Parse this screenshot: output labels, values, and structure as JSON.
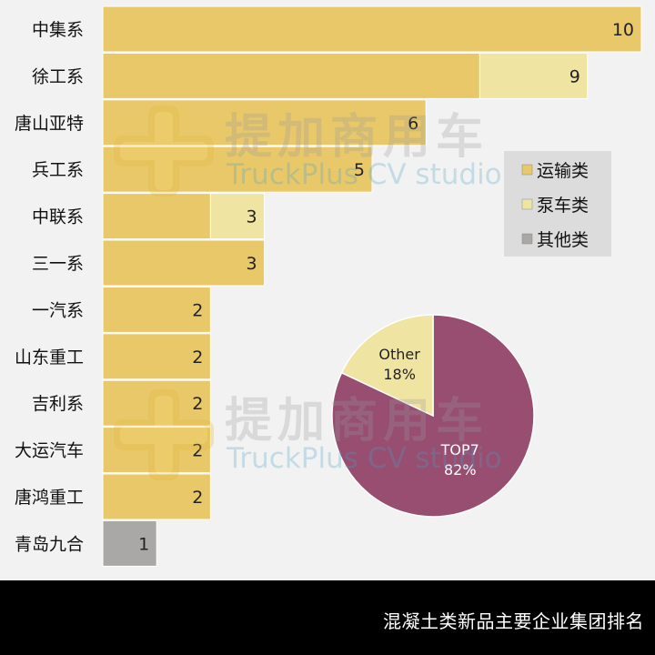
{
  "chart_data": [
    {
      "type": "bar",
      "orientation": "horizontal",
      "stacked": true,
      "categories": [
        "中集系",
        "徐工系",
        "唐山亚特",
        "兵工系",
        "中联系",
        "三一系",
        "一汽系",
        "山东重工",
        "吉利系",
        "大运汽车",
        "唐鸿重工",
        "青岛九合"
      ],
      "series": [
        {
          "name": "运输类",
          "values": [
            10,
            7,
            6,
            5,
            2,
            3,
            2,
            2,
            2,
            2,
            2,
            0
          ]
        },
        {
          "name": "泵车类",
          "values": [
            0,
            2,
            0,
            0,
            1,
            0,
            0,
            0,
            0,
            0,
            0,
            0
          ]
        },
        {
          "name": "其他类",
          "values": [
            0,
            0,
            0,
            0,
            0,
            0,
            0,
            0,
            0,
            0,
            0,
            1
          ]
        }
      ],
      "totals": [
        10,
        9,
        6,
        5,
        3,
        3,
        2,
        2,
        2,
        2,
        2,
        1
      ],
      "xlim": [
        0,
        10
      ],
      "legend": "right",
      "colors": [
        "#e9c86a",
        "#f0e4a2",
        "#a9a8a6"
      ]
    },
    {
      "type": "pie",
      "labels": [
        "TOP7",
        "Other"
      ],
      "values": [
        82,
        18
      ],
      "value_labels": [
        "82%",
        "18%"
      ],
      "colors": [
        "#974e71",
        "#f0e4a2"
      ]
    }
  ],
  "watermark": {
    "cn": "提加商用车",
    "en": "TruckPlus CV studio"
  },
  "footer": {
    "title": "混凝土类新品主要企业集团排名"
  }
}
